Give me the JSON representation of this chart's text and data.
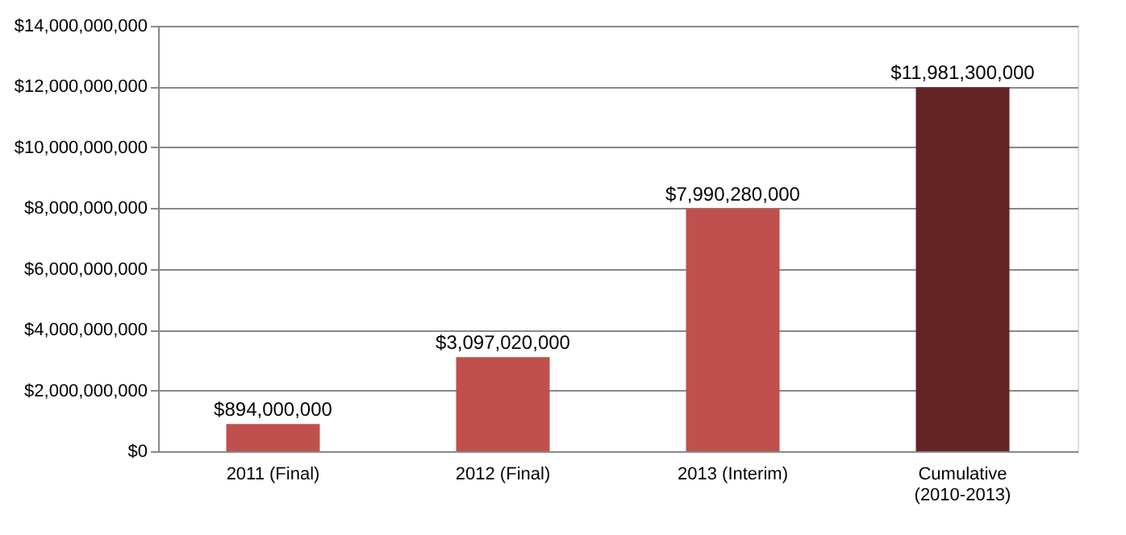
{
  "chart_data": {
    "type": "bar",
    "categories": [
      "2011 (Final)",
      "2012 (Final)",
      "2013 (Interim)",
      "Cumulative\n(2010-2013)"
    ],
    "values": [
      894000000,
      3097020000,
      7990280000,
      11981300000
    ],
    "colors": [
      "#c0504d",
      "#c0504d",
      "#c0504d",
      "#632523"
    ],
    "value_labels": [
      "$894,000,000",
      "$3,097,020,000",
      "$7,990,280,000",
      "$11,981,300,000"
    ],
    "ylim": [
      0,
      14000000000
    ],
    "yticks": [
      {
        "value": 0,
        "label": "$0"
      },
      {
        "value": 2000000000,
        "label": "$2,000,000,000"
      },
      {
        "value": 4000000000,
        "label": "$4,000,000,000"
      },
      {
        "value": 6000000000,
        "label": "$6,000,000,000"
      },
      {
        "value": 8000000000,
        "label": "$8,000,000,000"
      },
      {
        "value": 10000000000,
        "label": "$10,000,000,000"
      },
      {
        "value": 12000000000,
        "label": "$12,000,000,000"
      },
      {
        "value": 14000000000,
        "label": "$14,000,000,000"
      }
    ],
    "grid": "y"
  }
}
